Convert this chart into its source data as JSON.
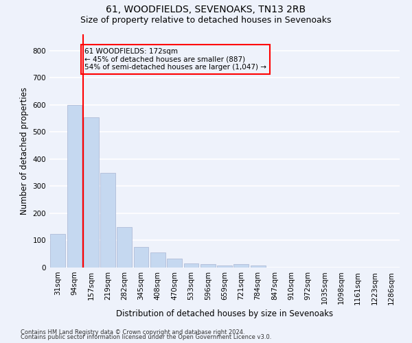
{
  "title": "61, WOODFIELDS, SEVENOAKS, TN13 2RB",
  "subtitle": "Size of property relative to detached houses in Sevenoaks",
  "xlabel": "Distribution of detached houses by size in Sevenoaks",
  "ylabel": "Number of detached properties",
  "bar_labels": [
    "31sqm",
    "94sqm",
    "157sqm",
    "219sqm",
    "282sqm",
    "345sqm",
    "408sqm",
    "470sqm",
    "533sqm",
    "596sqm",
    "659sqm",
    "721sqm",
    "784sqm",
    "847sqm",
    "910sqm",
    "972sqm",
    "1035sqm",
    "1098sqm",
    "1161sqm",
    "1223sqm",
    "1286sqm"
  ],
  "bar_values": [
    125,
    600,
    555,
    350,
    148,
    75,
    55,
    32,
    15,
    13,
    8,
    12,
    7,
    0,
    0,
    0,
    0,
    0,
    0,
    0,
    0
  ],
  "bar_color": "#c5d8f0",
  "bar_edge_color": "#b0bcd8",
  "red_line_bar_index": 2,
  "annotation_line1": "61 WOODFIELDS: 172sqm",
  "annotation_line2": "← 45% of detached houses are smaller (887)",
  "annotation_line3": "54% of semi-detached houses are larger (1,047) →",
  "ylim": [
    0,
    860
  ],
  "yticks": [
    0,
    100,
    200,
    300,
    400,
    500,
    600,
    700,
    800
  ],
  "footnote1": "Contains HM Land Registry data © Crown copyright and database right 2024.",
  "footnote2": "Contains public sector information licensed under the Open Government Licence v3.0.",
  "title_fontsize": 10,
  "subtitle_fontsize": 9,
  "xlabel_fontsize": 8.5,
  "ylabel_fontsize": 8.5,
  "tick_fontsize": 7.5,
  "annot_fontsize": 7.5,
  "footnote_fontsize": 6,
  "bg_color": "#eef2fb",
  "grid_color": "#ffffff"
}
